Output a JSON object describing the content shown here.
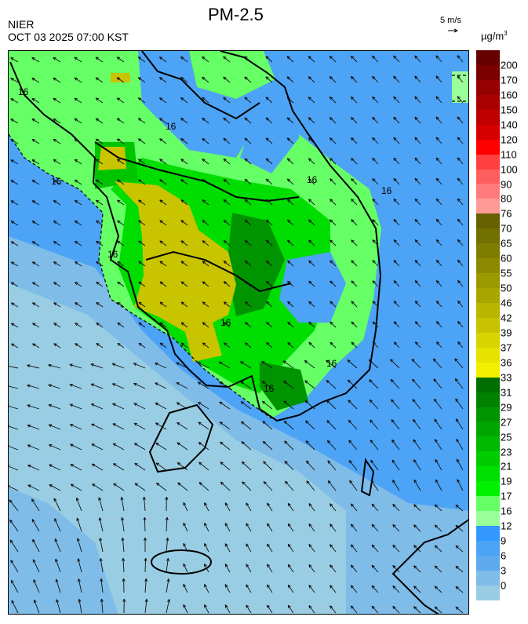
{
  "header": {
    "title": "PM-2.5",
    "agency": "NIER",
    "datetime": "OCT 03 2025 07:00 KST",
    "wind_reference": "5 m/s",
    "unit": "µg/m",
    "unit_exp": "3"
  },
  "map": {
    "contour_label": "16",
    "contour_labels": [
      "16",
      "16",
      "16",
      "16",
      "16",
      "16",
      "16",
      "16",
      "16"
    ]
  },
  "legend": {
    "labels": [
      "200",
      "170",
      "160",
      "150",
      "140",
      "120",
      "110",
      "100",
      "90",
      "80",
      "76",
      "70",
      "65",
      "60",
      "55",
      "50",
      "46",
      "42",
      "39",
      "37",
      "36",
      "33",
      "31",
      "29",
      "27",
      "25",
      "23",
      "21",
      "19",
      "17",
      "16",
      "12",
      "9",
      "6",
      "3",
      "0"
    ],
    "colors": [
      "#660000",
      "#7c0000",
      "#950000",
      "#ab0000",
      "#c00000",
      "#d60000",
      "#ff0000",
      "#ff4040",
      "#ff5e5e",
      "#ff7a7a",
      "#ff9a96",
      "#666000",
      "#727000",
      "#7f7d00",
      "#8d8a00",
      "#9b9800",
      "#aaa600",
      "#b9b500",
      "#c7c300",
      "#d8d400",
      "#e6e300",
      "#f2ef00",
      "#006e00",
      "#008200",
      "#009400",
      "#00a600",
      "#00b800",
      "#00cc00",
      "#00e000",
      "#00f200",
      "#66ff66",
      "#99ff99",
      "#3399ff",
      "#4da3f5",
      "#5faaee",
      "#80bce8",
      "#99cde3"
    ]
  },
  "colors": {
    "sea_light": "#99cde3",
    "sea_mid": "#80bce8",
    "blue": "#4da3f5",
    "green_light": "#66ff66",
    "green": "#00dd00",
    "green_dark": "#009400",
    "olive": "#c8c400"
  }
}
